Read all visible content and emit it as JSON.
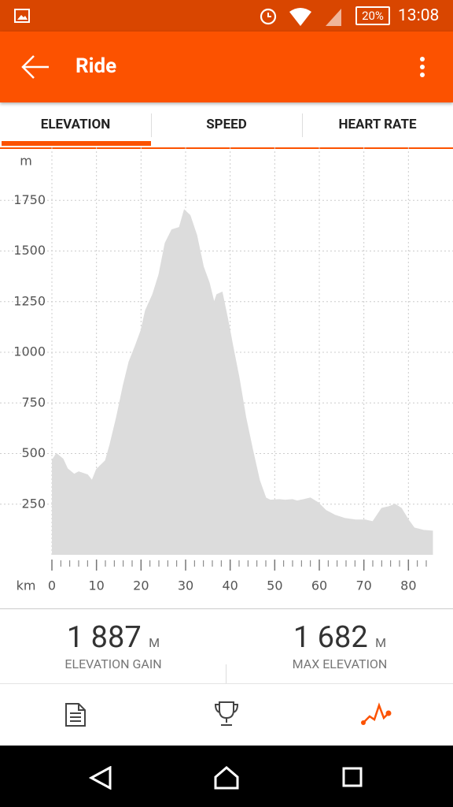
{
  "status_bar": {
    "battery": "20%",
    "time": "13:08"
  },
  "header": {
    "title": "Ride"
  },
  "tabs": [
    "ELEVATION",
    "SPEED",
    "HEART RATE"
  ],
  "chart_data": {
    "type": "area",
    "y_unit": "m",
    "x_unit": "km",
    "color": "#dcdcdc",
    "grid": true,
    "x": [
      0,
      1,
      2.5,
      3.5,
      5,
      6,
      8,
      9,
      10,
      12,
      13,
      14.5,
      16,
      17.3,
      18.7,
      20,
      21,
      22.6,
      24,
      25.4,
      26.9,
      28.6,
      29.7,
      31,
      32.5,
      34,
      35.3,
      36.4,
      37,
      38.2,
      39.6,
      40.6,
      42,
      43.5,
      45,
      46.6,
      48,
      49,
      51,
      52.3,
      54,
      55,
      56.5,
      58,
      59.7,
      61.5,
      63.6,
      65.7,
      68.2,
      70.3,
      72,
      74,
      75.6,
      77,
      78.4,
      80,
      81.3,
      83.4,
      85.5
    ],
    "values": [
      465,
      500,
      473,
      425,
      398,
      410,
      395,
      367,
      422,
      465,
      543,
      680,
      836,
      953,
      1031,
      1109,
      1207,
      1285,
      1383,
      1539,
      1605,
      1617,
      1703,
      1676,
      1578,
      1422,
      1344,
      1246,
      1285,
      1297,
      1148,
      1031,
      875,
      680,
      523,
      367,
      281,
      270,
      273,
      270,
      273,
      266,
      273,
      281,
      258,
      219,
      195,
      180,
      172,
      172,
      164,
      230,
      238,
      250,
      230,
      172,
      133,
      121,
      117
    ],
    "xlim": [
      0,
      90
    ],
    "ylim": [
      0,
      2000
    ],
    "xticks": [
      0,
      10,
      20,
      30,
      40,
      50,
      60,
      70,
      80
    ],
    "xminorticks": [
      0,
      2,
      4,
      6,
      8,
      10,
      12,
      14,
      16,
      18,
      20,
      22,
      24,
      26,
      28,
      30,
      32,
      34,
      36,
      38,
      40,
      42,
      44,
      46,
      48,
      50,
      52,
      54,
      56,
      58,
      60,
      62,
      64,
      66,
      68,
      70,
      72,
      74,
      76,
      78,
      80,
      82,
      84
    ],
    "yticks": [
      250,
      500,
      750,
      1000,
      1250,
      1500,
      1750
    ]
  },
  "stats": [
    {
      "value": "1 887",
      "unit": "M",
      "label": "ELEVATION GAIN"
    },
    {
      "value": "1 682",
      "unit": "M",
      "label": "MAX ELEVATION"
    }
  ]
}
